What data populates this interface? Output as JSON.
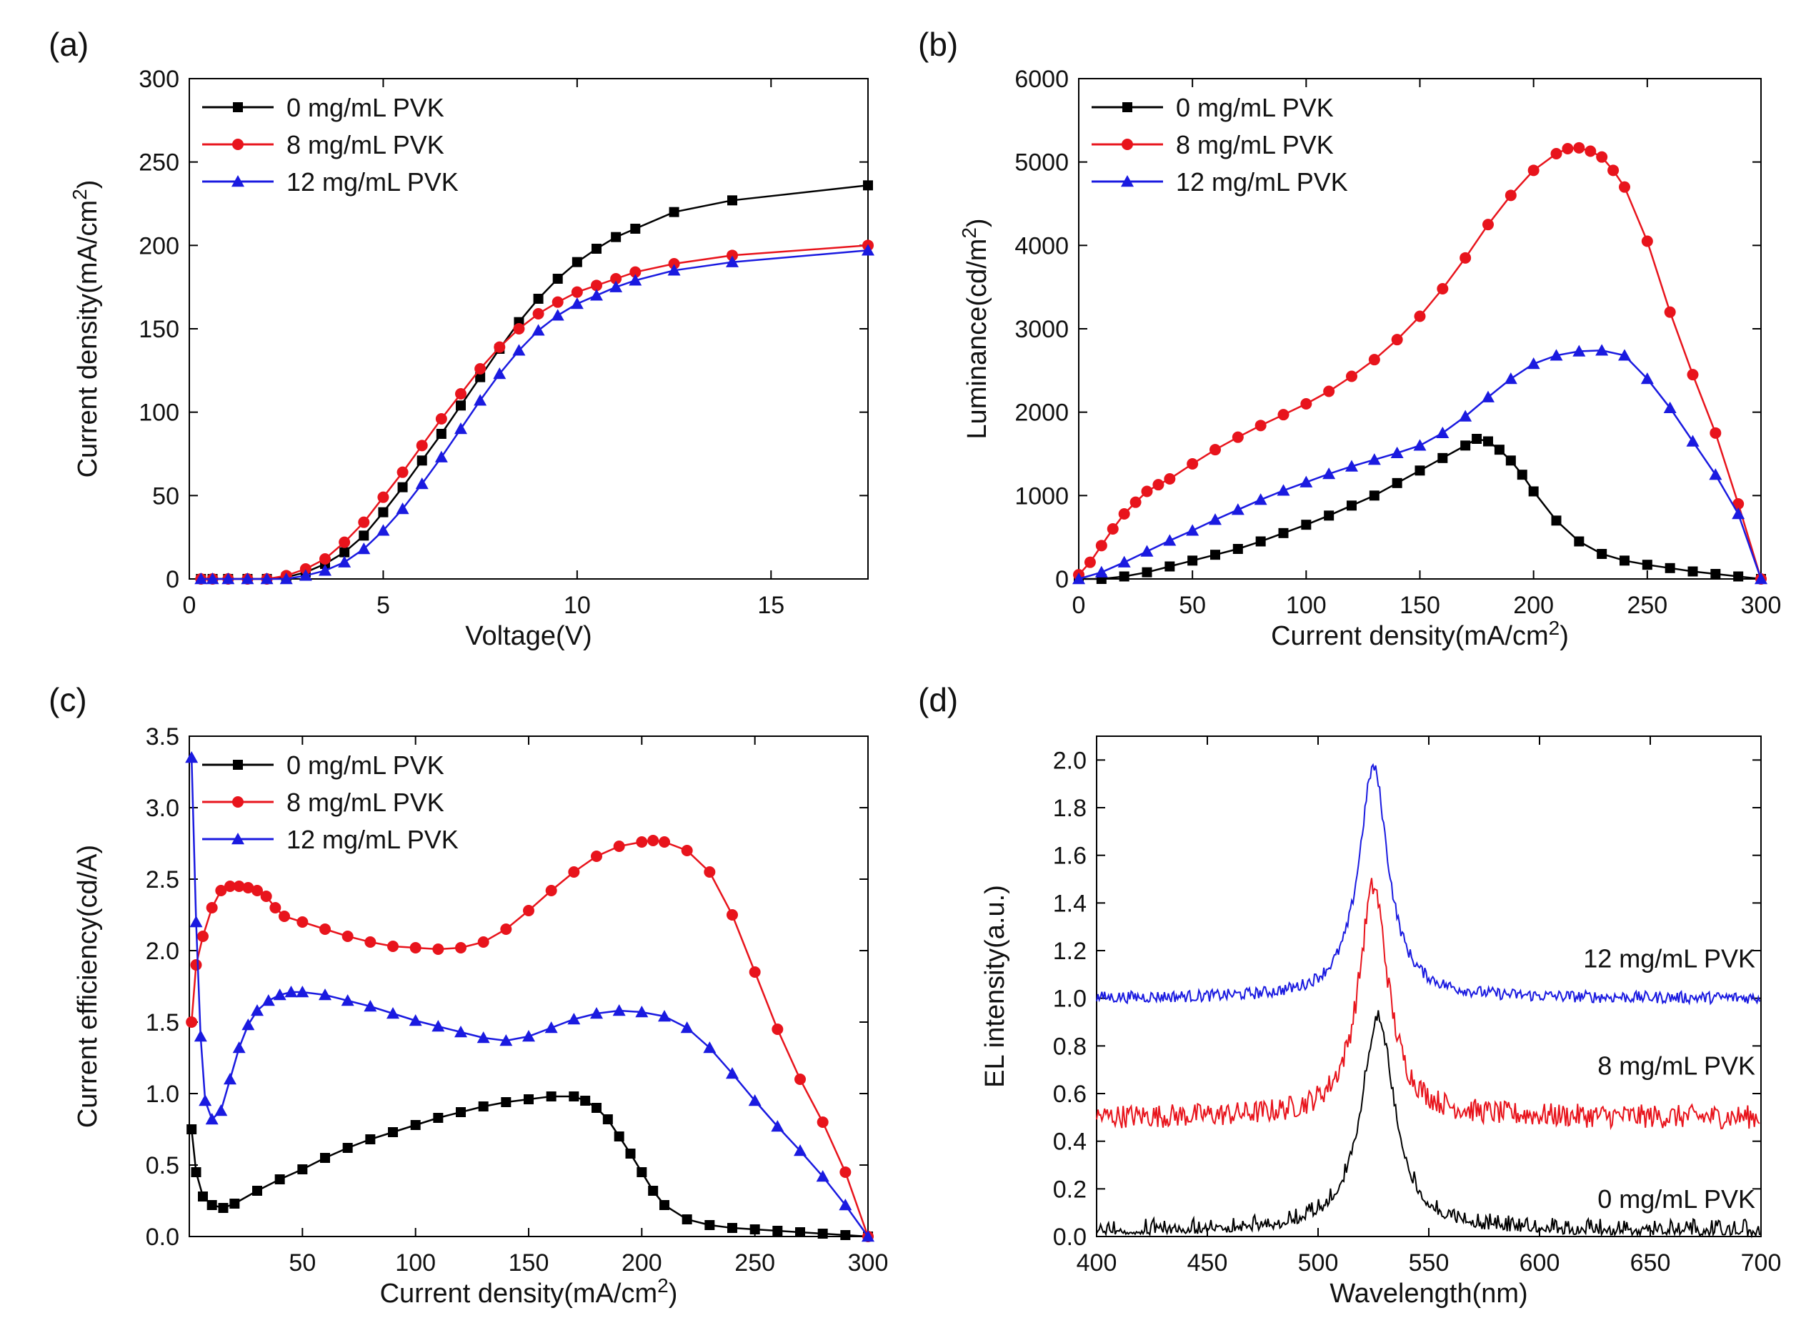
{
  "chart_data": [
    {
      "id": "a",
      "panel_label": "(a)",
      "type": "line",
      "xlabel": "Voltage(V)",
      "ylabel_base": "Current density(mA/cm",
      "ylabel_sup": "2",
      "ylabel_close": ")",
      "xlim": [
        0,
        17.5
      ],
      "ylim": [
        0,
        300
      ],
      "xticks": [
        0,
        5,
        10,
        15
      ],
      "yticks": [
        0,
        50,
        100,
        150,
        200,
        250,
        300
      ],
      "legend": "top-left",
      "series": [
        {
          "name": "0 mg/mL PVK",
          "color": "#000000",
          "marker": "square",
          "x": [
            0.3,
            0.6,
            1,
            1.5,
            2,
            2.5,
            3,
            3.5,
            4,
            4.5,
            5,
            5.5,
            6,
            6.5,
            7,
            7.5,
            8,
            8.5,
            9,
            9.5,
            10,
            10.5,
            11,
            11.5,
            12.5,
            14,
            17.5
          ],
          "y": [
            0,
            0,
            0,
            0,
            0,
            1,
            4,
            9,
            16,
            26,
            40,
            55,
            71,
            87,
            104,
            121,
            138,
            154,
            168,
            180,
            190,
            198,
            205,
            210,
            220,
            227,
            236
          ]
        },
        {
          "name": "8 mg/mL PVK",
          "color": "#e8141c",
          "marker": "circle",
          "x": [
            0.3,
            0.6,
            1,
            1.5,
            2,
            2.5,
            3,
            3.5,
            4,
            4.5,
            5,
            5.5,
            6,
            6.5,
            7,
            7.5,
            8,
            8.5,
            9,
            9.5,
            10,
            10.5,
            11,
            11.5,
            12.5,
            14,
            17.5
          ],
          "y": [
            0,
            0,
            0,
            0,
            0,
            2,
            6,
            12,
            22,
            34,
            49,
            64,
            80,
            96,
            111,
            126,
            139,
            150,
            159,
            166,
            172,
            176,
            180,
            184,
            189,
            194,
            200
          ]
        },
        {
          "name": "12 mg/mL PVK",
          "color": "#1a1ae0",
          "marker": "triangle",
          "x": [
            0.3,
            0.6,
            1,
            1.5,
            2,
            2.5,
            3,
            3.5,
            4,
            4.5,
            5,
            5.5,
            6,
            6.5,
            7,
            7.5,
            8,
            8.5,
            9,
            9.5,
            10,
            10.5,
            11,
            11.5,
            12.5,
            14,
            17.5
          ],
          "y": [
            0,
            0,
            0,
            0,
            0,
            0,
            2,
            5,
            10,
            18,
            29,
            42,
            57,
            73,
            90,
            107,
            123,
            137,
            149,
            158,
            165,
            170,
            175,
            179,
            185,
            190,
            197
          ]
        }
      ]
    },
    {
      "id": "b",
      "panel_label": "(b)",
      "type": "line",
      "xlabel_base": "Current density(mA/cm",
      "xlabel_sup": "2",
      "xlabel_close": ")",
      "ylabel_base": "Luminance(cd/m",
      "ylabel_sup": "2",
      "ylabel_close": ")",
      "xlim": [
        0,
        300
      ],
      "ylim": [
        0,
        6000
      ],
      "xticks": [
        0,
        50,
        100,
        150,
        200,
        250,
        300
      ],
      "yticks": [
        0,
        1000,
        2000,
        3000,
        4000,
        5000,
        6000
      ],
      "legend": "top-left",
      "series": [
        {
          "name": "0 mg/mL PVK",
          "color": "#000000",
          "marker": "square",
          "x": [
            0,
            10,
            20,
            30,
            40,
            50,
            60,
            70,
            80,
            90,
            100,
            110,
            120,
            130,
            140,
            150,
            160,
            170,
            175,
            180,
            185,
            190,
            195,
            200,
            210,
            220,
            230,
            240,
            250,
            260,
            270,
            280,
            290,
            300
          ],
          "y": [
            0,
            0,
            30,
            80,
            150,
            220,
            290,
            360,
            450,
            550,
            650,
            760,
            880,
            1000,
            1150,
            1300,
            1450,
            1600,
            1680,
            1650,
            1550,
            1420,
            1250,
            1050,
            700,
            450,
            300,
            220,
            170,
            130,
            90,
            60,
            30,
            0
          ]
        },
        {
          "name": "8 mg/mL PVK",
          "color": "#e8141c",
          "marker": "circle",
          "x": [
            0,
            5,
            10,
            15,
            20,
            25,
            30,
            35,
            40,
            50,
            60,
            70,
            80,
            90,
            100,
            110,
            120,
            130,
            140,
            150,
            160,
            170,
            180,
            190,
            200,
            210,
            215,
            220,
            225,
            230,
            235,
            240,
            250,
            260,
            270,
            280,
            290,
            300
          ],
          "y": [
            50,
            200,
            400,
            600,
            780,
            920,
            1050,
            1130,
            1200,
            1380,
            1550,
            1700,
            1840,
            1970,
            2100,
            2250,
            2430,
            2630,
            2870,
            3150,
            3480,
            3850,
            4250,
            4600,
            4900,
            5100,
            5160,
            5170,
            5130,
            5060,
            4900,
            4700,
            4050,
            3200,
            2450,
            1750,
            900,
            0
          ]
        },
        {
          "name": "12 mg/mL PVK",
          "color": "#1a1ae0",
          "marker": "triangle",
          "x": [
            0,
            10,
            20,
            30,
            40,
            50,
            60,
            70,
            80,
            90,
            100,
            110,
            120,
            130,
            140,
            150,
            160,
            170,
            180,
            190,
            200,
            210,
            220,
            230,
            240,
            250,
            260,
            270,
            280,
            290,
            300
          ],
          "y": [
            0,
            80,
            200,
            330,
            460,
            580,
            710,
            830,
            950,
            1060,
            1160,
            1260,
            1350,
            1430,
            1510,
            1600,
            1750,
            1950,
            2180,
            2400,
            2580,
            2680,
            2730,
            2740,
            2680,
            2400,
            2050,
            1650,
            1250,
            780,
            0
          ]
        }
      ]
    },
    {
      "id": "c",
      "panel_label": "(c)",
      "type": "line",
      "xlabel_base": "Current density(mA/cm",
      "xlabel_sup": "2",
      "xlabel_close": ")",
      "ylabel": "Current efficiency(cd/A)",
      "xlim": [
        0,
        300
      ],
      "ylim": [
        0,
        3.5
      ],
      "xticks": [
        50,
        100,
        150,
        200,
        250,
        300
      ],
      "yticks": [
        0.0,
        0.5,
        1.0,
        1.5,
        2.0,
        2.5,
        3.0,
        3.5
      ],
      "ytick_labels": [
        "0.0",
        "0.5",
        "1.0",
        "1.5",
        "2.0",
        "2.5",
        "3.0",
        "3.5"
      ],
      "legend": "top-left",
      "series": [
        {
          "name": "0 mg/mL PVK",
          "color": "#000000",
          "marker": "square",
          "x": [
            1,
            3,
            6,
            10,
            15,
            20,
            30,
            40,
            50,
            60,
            70,
            80,
            90,
            100,
            110,
            120,
            130,
            140,
            150,
            160,
            170,
            175,
            180,
            185,
            190,
            195,
            200,
            205,
            210,
            220,
            230,
            240,
            250,
            260,
            270,
            280,
            290,
            300
          ],
          "y": [
            0.75,
            0.45,
            0.28,
            0.22,
            0.2,
            0.23,
            0.32,
            0.4,
            0.47,
            0.55,
            0.62,
            0.68,
            0.73,
            0.78,
            0.83,
            0.87,
            0.91,
            0.94,
            0.96,
            0.98,
            0.98,
            0.95,
            0.9,
            0.82,
            0.7,
            0.58,
            0.45,
            0.32,
            0.22,
            0.12,
            0.08,
            0.06,
            0.05,
            0.04,
            0.03,
            0.02,
            0.01,
            0.0
          ]
        },
        {
          "name": "8 mg/mL PVK",
          "color": "#e8141c",
          "marker": "circle",
          "x": [
            1,
            3,
            6,
            10,
            14,
            18,
            22,
            26,
            30,
            34,
            38,
            42,
            50,
            60,
            70,
            80,
            90,
            100,
            110,
            120,
            130,
            140,
            150,
            160,
            170,
            180,
            190,
            200,
            205,
            210,
            220,
            230,
            240,
            250,
            260,
            270,
            280,
            290,
            300
          ],
          "y": [
            1.5,
            1.9,
            2.1,
            2.3,
            2.42,
            2.45,
            2.45,
            2.44,
            2.42,
            2.38,
            2.3,
            2.24,
            2.2,
            2.15,
            2.1,
            2.06,
            2.03,
            2.02,
            2.01,
            2.02,
            2.06,
            2.15,
            2.28,
            2.42,
            2.55,
            2.66,
            2.73,
            2.76,
            2.77,
            2.76,
            2.7,
            2.55,
            2.25,
            1.85,
            1.45,
            1.1,
            0.8,
            0.45,
            0.0
          ]
        },
        {
          "name": "12 mg/mL PVK",
          "color": "#1a1ae0",
          "marker": "triangle",
          "x": [
            1,
            3,
            5,
            7,
            10,
            14,
            18,
            22,
            26,
            30,
            35,
            40,
            45,
            50,
            60,
            70,
            80,
            90,
            100,
            110,
            120,
            130,
            140,
            150,
            160,
            170,
            180,
            190,
            200,
            210,
            220,
            230,
            240,
            250,
            260,
            270,
            280,
            290,
            300
          ],
          "y": [
            3.35,
            2.2,
            1.4,
            0.95,
            0.82,
            0.88,
            1.1,
            1.32,
            1.48,
            1.58,
            1.65,
            1.69,
            1.71,
            1.71,
            1.69,
            1.65,
            1.61,
            1.56,
            1.51,
            1.47,
            1.43,
            1.39,
            1.37,
            1.4,
            1.46,
            1.52,
            1.56,
            1.58,
            1.57,
            1.54,
            1.46,
            1.32,
            1.14,
            0.95,
            0.77,
            0.6,
            0.42,
            0.22,
            0.0
          ]
        }
      ]
    },
    {
      "id": "d",
      "panel_label": "(d)",
      "type": "line",
      "xlabel": "Wavelength(nm)",
      "ylabel": "EL intensity(a.u.)",
      "xlim": [
        400,
        700
      ],
      "ylim": [
        0,
        2.1
      ],
      "xticks": [
        400,
        450,
        500,
        550,
        600,
        650,
        700
      ],
      "yticks": [
        0.0,
        0.2,
        0.4,
        0.6,
        0.8,
        1.0,
        1.2,
        1.4,
        1.6,
        1.8,
        2.0
      ],
      "ytick_labels": [
        "0.0",
        "0.2",
        "0.4",
        "0.6",
        "0.8",
        "1.0",
        "1.2",
        "1.4",
        "1.6",
        "1.8",
        "2.0"
      ],
      "series": [
        {
          "name": "0 mg/mL PVK",
          "color": "#000000",
          "baseline": 0.0,
          "peak_center": 527,
          "peak_height": 0.9,
          "peak_width": 9,
          "noise": 0.07
        },
        {
          "name": "8 mg/mL PVK",
          "color": "#e8141c",
          "baseline": 0.5,
          "peak_center": 525,
          "peak_height": 0.97,
          "peak_width": 8,
          "noise": 0.05
        },
        {
          "name": "12 mg/mL PVK",
          "color": "#1a1ae0",
          "baseline": 1.0,
          "peak_center": 525,
          "peak_height": 0.97,
          "peak_width": 8,
          "noise": 0.025
        }
      ],
      "labels": [
        "12 mg/mL PVK",
        "8 mg/mL PVK",
        "0 mg/mL PVK"
      ]
    }
  ]
}
